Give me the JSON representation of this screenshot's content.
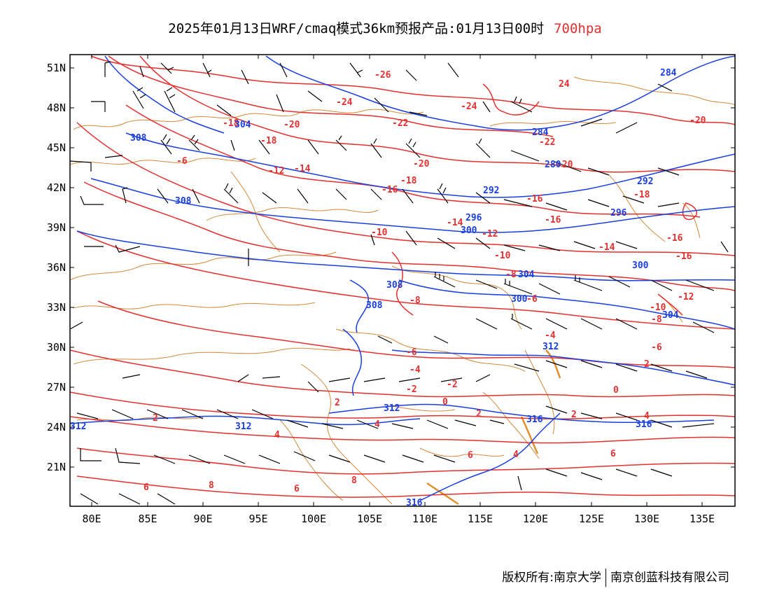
{
  "title": {
    "main": "2025年01月13日WRF/cmaq模式36km预报产品:01月13日00时",
    "level": "700hpa"
  },
  "footer": {
    "copyright": "版权所有:南京大学",
    "company": "南京创蓝科技有限公司"
  },
  "axes": {
    "lat_labels": [
      "51N",
      "48N",
      "45N",
      "42N",
      "39N",
      "36N",
      "33N",
      "30N",
      "27N",
      "24N",
      "21N"
    ],
    "lon_labels": [
      "80E",
      "85E",
      "90E",
      "95E",
      "100E",
      "105E",
      "110E",
      "115E",
      "120E",
      "125E",
      "130E",
      "135E"
    ]
  },
  "colors": {
    "temperature": "#e53030",
    "height": "#1a3fe0",
    "border": "#d4893a",
    "wind": "#000000"
  },
  "temperature_labels": [
    "-26",
    "-24",
    "24",
    "-24",
    "-22",
    "-22",
    "-20",
    "-20",
    "-18",
    "-18",
    "-20",
    "-12",
    "-14",
    "-16",
    "-16",
    "-18",
    "-20",
    "-18",
    "-16",
    "-14",
    "-12",
    "-10",
    "-10",
    "-8",
    "-6",
    "-6",
    "-8",
    "-14",
    "-16",
    "-16",
    "-12",
    "-10",
    "-8",
    "-6",
    "-4",
    "-6",
    "-4",
    "-2",
    "-2",
    "2",
    "0",
    "0",
    "2",
    "2",
    "2",
    "2",
    "4",
    "4",
    "4",
    "4",
    "6",
    "6",
    "6",
    "6",
    "8",
    "8"
  ],
  "height_labels": [
    "284",
    "284",
    "308",
    "308",
    "280",
    "292",
    "296",
    "296",
    "300",
    "300",
    "292",
    "304",
    "308",
    "308",
    "304",
    "300",
    "312",
    "312",
    "312",
    "312",
    "316",
    "316",
    "316",
    "304"
  ]
}
